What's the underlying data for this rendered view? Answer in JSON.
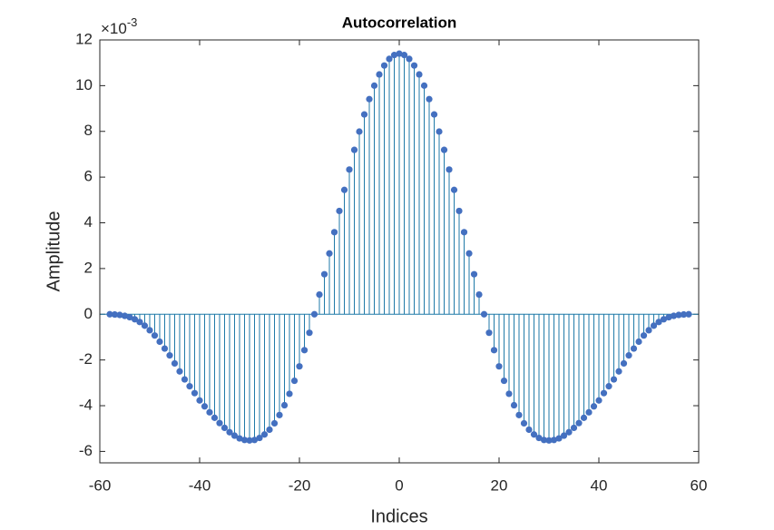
{
  "chart_data": {
    "type": "stem",
    "title": "Autocorrelation",
    "x_label": "Indices",
    "y_label": "Amplitude",
    "y_multiplier": {
      "base": "×10",
      "exponent": "-3"
    },
    "xlim": [
      -60,
      60
    ],
    "xticks": [
      -60,
      -40,
      -20,
      0,
      20,
      40,
      60
    ],
    "ylim": [
      -6.5,
      12
    ],
    "yticks": [
      -6,
      -4,
      -2,
      0,
      2,
      4,
      6,
      8,
      10,
      12
    ],
    "grid": false,
    "x": [
      -58,
      -57,
      -56,
      -55,
      -54,
      -53,
      -52,
      -51,
      -50,
      -49,
      -48,
      -47,
      -46,
      -45,
      -44,
      -43,
      -42,
      -41,
      -40,
      -39,
      -38,
      -37,
      -36,
      -35,
      -34,
      -33,
      -32,
      -31,
      -30,
      -29,
      -28,
      -27,
      -26,
      -25,
      -24,
      -23,
      -22,
      -21,
      -20,
      -19,
      -18,
      -17,
      -16,
      -15,
      -14,
      -13,
      -12,
      -11,
      -10,
      -9,
      -8,
      -7,
      -6,
      -5,
      -4,
      -3,
      -2,
      -1,
      0,
      1,
      2,
      3,
      4,
      5,
      6,
      7,
      8,
      9,
      10,
      11,
      12,
      13,
      14,
      15,
      16,
      17,
      18,
      19,
      20,
      21,
      22,
      23,
      24,
      25,
      26,
      27,
      28,
      29,
      30,
      31,
      32,
      33,
      34,
      35,
      36,
      37,
      38,
      39,
      40,
      41,
      42,
      43,
      44,
      45,
      46,
      47,
      48,
      49,
      50,
      51,
      52,
      53,
      54,
      55,
      56,
      57,
      58
    ],
    "series": [
      {
        "color": "#1f7aa8",
        "marker_color": "#4470c0",
        "values": [
          0,
          -0.01,
          -0.03,
          -0.07,
          -0.13,
          -0.22,
          -0.34,
          -0.5,
          -0.7,
          -0.93,
          -1.2,
          -1.5,
          -1.8,
          -2.15,
          -2.5,
          -2.85,
          -3.15,
          -3.45,
          -3.77,
          -4.03,
          -4.29,
          -4.53,
          -4.76,
          -4.97,
          -5.16,
          -5.31,
          -5.43,
          -5.5,
          -5.52,
          -5.5,
          -5.41,
          -5.26,
          -5.05,
          -4.77,
          -4.41,
          -3.98,
          -3.48,
          -2.91,
          -2.28,
          -1.57,
          -0.81,
          0,
          0.86,
          1.75,
          2.66,
          3.59,
          4.52,
          5.44,
          6.33,
          7.19,
          7.99,
          8.74,
          9.41,
          10.0,
          10.49,
          10.88,
          11.17,
          11.34,
          11.4,
          11.34,
          11.17,
          10.88,
          10.49,
          10.0,
          9.41,
          8.74,
          7.99,
          7.19,
          6.33,
          5.44,
          4.52,
          3.59,
          2.66,
          1.75,
          0.86,
          0,
          -0.81,
          -1.57,
          -2.28,
          -2.91,
          -3.48,
          -3.98,
          -4.41,
          -4.77,
          -5.05,
          -5.26,
          -5.41,
          -5.5,
          -5.52,
          -5.5,
          -5.43,
          -5.31,
          -5.16,
          -4.97,
          -4.76,
          -4.53,
          -4.29,
          -4.03,
          -3.77,
          -3.45,
          -3.15,
          -2.85,
          -2.5,
          -2.15,
          -1.8,
          -1.5,
          -1.2,
          -0.93,
          -0.7,
          -0.5,
          -0.34,
          -0.22,
          -0.13,
          -0.07,
          -0.03,
          -0.01,
          0
        ]
      }
    ]
  }
}
